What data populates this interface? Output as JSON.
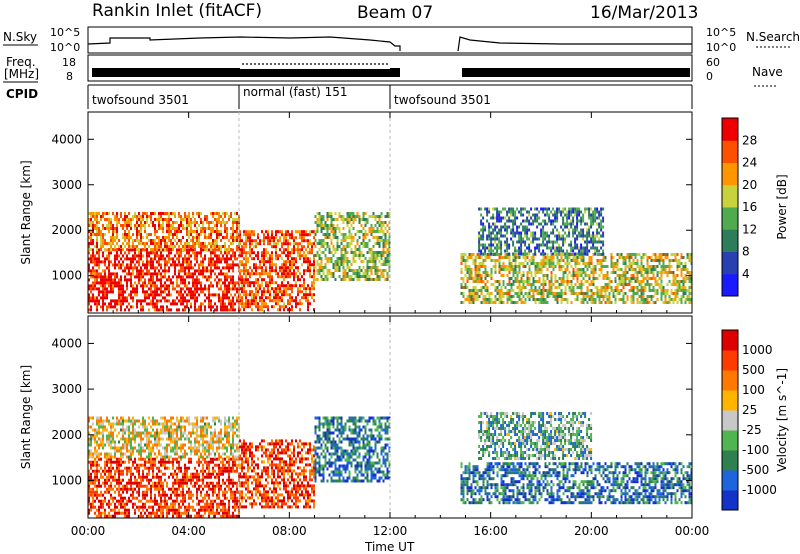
{
  "header": {
    "station": "Rankin Inlet (fitACF)",
    "beam": "Beam 07",
    "date": "16/Mar/2013"
  },
  "strip": {
    "nsky_label": "N.Sky",
    "nsky_ticks": [
      "10^5",
      "10^0"
    ],
    "nsearch_label": "N.Search",
    "freq_label_1": "Freq.",
    "freq_label_2": "[MHz]",
    "freq_ticks": [
      "18",
      "8"
    ],
    "nave_ticks": [
      "60",
      "0"
    ],
    "nave_label": "Nave",
    "cpid_label": "CPID",
    "cpid_segments": [
      {
        "label": "twofsound 3501",
        "start": 0,
        "end": 6
      },
      {
        "label": "normal (fast) 151",
        "start": 6,
        "end": 12
      },
      {
        "label": "twofsound 3501",
        "start": 12,
        "end": 24
      }
    ]
  },
  "chart_data": [
    {
      "type": "heatmap",
      "title": "",
      "xlabel": "Time UT",
      "ylabel": "Slant Range [km]",
      "xlim": [
        0,
        24
      ],
      "ylim": [
        180,
        4600
      ],
      "x_ticks": [
        "00:00",
        "04:00",
        "08:00",
        "12:00",
        "16:00",
        "20:00",
        "00:00"
      ],
      "y_ticks": [
        "1000",
        "2000",
        "3000",
        "4000"
      ],
      "colorbar": {
        "label": "Power [dB]",
        "ticks": [
          "4",
          "8",
          "12",
          "16",
          "20",
          "24",
          "28"
        ],
        "range": [
          0,
          30
        ],
        "colors": [
          "#1a1aff",
          "#2840b0",
          "#2e7d5a",
          "#4faa50",
          "#c8d23c",
          "#ff9600",
          "#ff5000",
          "#ee0000"
        ]
      },
      "regions": [
        {
          "t0": 0.0,
          "t1": 6.0,
          "r0": 220,
          "r1": 1600,
          "level": 0.93
        },
        {
          "t0": 0.0,
          "t1": 6.0,
          "r0": 1600,
          "r1": 2400,
          "level": 0.75
        },
        {
          "t0": 6.0,
          "t1": 9.0,
          "r0": 220,
          "r1": 2000,
          "level": 0.82
        },
        {
          "t0": 9.0,
          "t1": 12.0,
          "r0": 900,
          "r1": 2400,
          "level": 0.5
        },
        {
          "t0": 14.8,
          "t1": 24.0,
          "r0": 400,
          "r1": 1500,
          "level": 0.55
        },
        {
          "t0": 15.5,
          "t1": 20.5,
          "r0": 1500,
          "r1": 2500,
          "level": 0.3
        }
      ]
    },
    {
      "type": "heatmap",
      "title": "",
      "xlabel": "Time UT",
      "ylabel": "Slant Range [km]",
      "xlim": [
        0,
        24
      ],
      "ylim": [
        180,
        4600
      ],
      "x_ticks": [
        "00:00",
        "04:00",
        "08:00",
        "12:00",
        "16:00",
        "20:00",
        "00:00"
      ],
      "y_ticks": [
        "1000",
        "2000",
        "3000",
        "4000"
      ],
      "colorbar": {
        "label": "Velocity [m s^-1]",
        "ticks": [
          "1000",
          "500",
          "100",
          "25",
          "-25",
          "-100",
          "-500",
          "-1000"
        ],
        "range": [
          -1000,
          1000
        ],
        "colors": [
          "#1432c8",
          "#1e64dc",
          "#2e8050",
          "#50b450",
          "#c8c8c8",
          "#ffb400",
          "#ff7800",
          "#ff3c00",
          "#dd0000"
        ]
      },
      "regions": [
        {
          "t0": 0.0,
          "t1": 6.0,
          "r0": 220,
          "r1": 1500,
          "level": 0.88
        },
        {
          "t0": 0.0,
          "t1": 6.0,
          "r0": 1500,
          "r1": 2400,
          "level": 0.55
        },
        {
          "t0": 6.0,
          "t1": 9.0,
          "r0": 400,
          "r1": 1900,
          "level": 0.85
        },
        {
          "t0": 9.0,
          "t1": 12.0,
          "r0": 1000,
          "r1": 2400,
          "level": 0.22
        },
        {
          "t0": 14.8,
          "t1": 24.0,
          "r0": 500,
          "r1": 1400,
          "level": 0.2
        },
        {
          "t0": 15.5,
          "t1": 20.0,
          "r0": 1500,
          "r1": 2500,
          "level": 0.35
        }
      ]
    }
  ]
}
